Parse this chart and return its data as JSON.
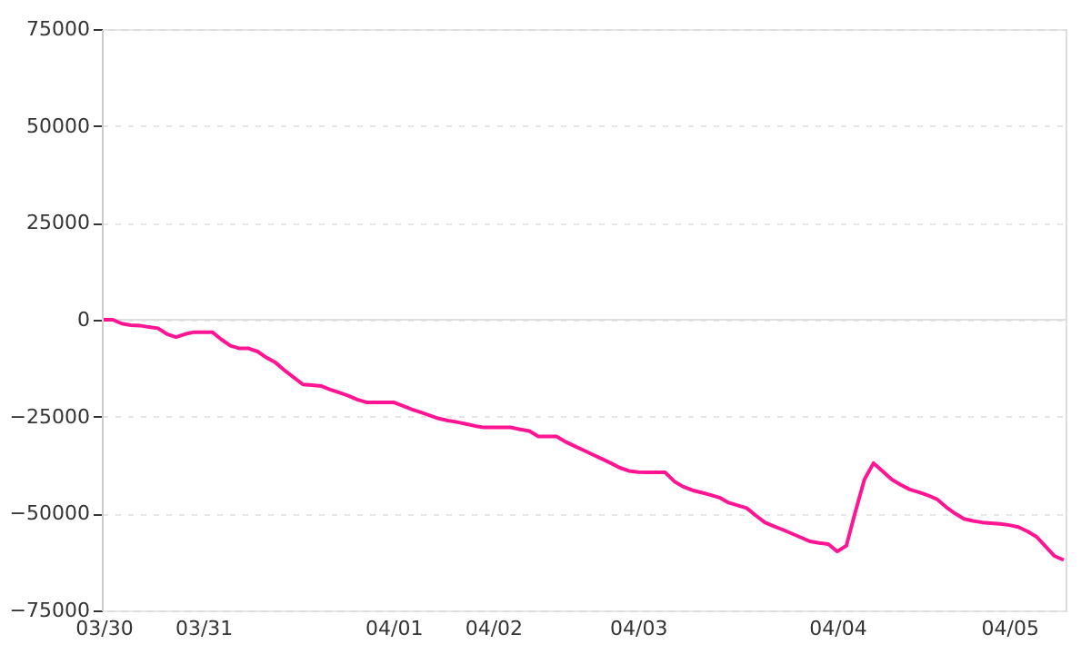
{
  "chart_data": {
    "type": "line",
    "categories": [
      "03/30",
      null,
      null,
      null,
      null,
      null,
      null,
      null,
      null,
      null,
      null,
      "03/31",
      null,
      null,
      null,
      null,
      null,
      null,
      null,
      null,
      null,
      null,
      null,
      null,
      null,
      null,
      null,
      null,
      null,
      null,
      null,
      null,
      "04/01",
      null,
      null,
      null,
      null,
      null,
      null,
      null,
      null,
      null,
      null,
      "04/02",
      null,
      null,
      null,
      null,
      null,
      null,
      null,
      null,
      null,
      null,
      null,
      null,
      null,
      null,
      null,
      "04/03",
      null,
      null,
      null,
      null,
      null,
      null,
      null,
      null,
      null,
      null,
      null,
      null,
      null,
      null,
      null,
      null,
      null,
      null,
      null,
      null,
      null,
      "04/04",
      null,
      null,
      null,
      null,
      null,
      null,
      null,
      null,
      null,
      null,
      null,
      null,
      null,
      null,
      null,
      null,
      null,
      null,
      "04/05",
      null,
      null,
      null,
      null,
      null,
      null
    ],
    "series": [
      {
        "color": "#ff1493",
        "values": [
          0,
          0,
          -1000,
          -1400,
          -1500,
          -1900,
          -2200,
          -3700,
          -4500,
          -3700,
          -3200,
          -3200,
          -3200,
          -5100,
          -6700,
          -7400,
          -7400,
          -8200,
          -9800,
          -11100,
          -13100,
          -14900,
          -16700,
          -16900,
          -17100,
          -18000,
          -18800,
          -19600,
          -20600,
          -21300,
          -21300,
          -21300,
          -21300,
          -22200,
          -23100,
          -23900,
          -24700,
          -25500,
          -26000,
          -26400,
          -26900,
          -27400,
          -27800,
          -27800,
          -27800,
          -27800,
          -28300,
          -28700,
          -30100,
          -30100,
          -30100,
          -31500,
          -32600,
          -33700,
          -34800,
          -35900,
          -37000,
          -38200,
          -39000,
          -39300,
          -39400,
          -39400,
          -39400,
          -41700,
          -43100,
          -44000,
          -44600,
          -45200,
          -45900,
          -47200,
          -47900,
          -48600,
          -50500,
          -52300,
          -53300,
          -54200,
          -55200,
          -56200,
          -57200,
          -57600,
          -57900,
          -59800,
          -58300,
          -49500,
          -41200,
          -37000,
          -39100,
          -41200,
          -42600,
          -43800,
          -44500,
          -45300,
          -46300,
          -48300,
          -50000,
          -51400,
          -51900,
          -52300,
          -52500,
          -52700,
          -53000,
          -53500,
          -54600,
          -56000,
          -58500,
          -61000,
          -62000
        ]
      }
    ],
    "ylim": [
      -75000,
      75000
    ],
    "yticks": [
      -75000,
      -50000,
      -25000,
      0,
      25000,
      50000,
      75000
    ],
    "grid": "y",
    "ref_lines": [
      {
        "axis": "y",
        "value": 0,
        "color": "#dddddd",
        "line_style": "solid"
      }
    ],
    "marker": "none",
    "line_style": "solid"
  }
}
